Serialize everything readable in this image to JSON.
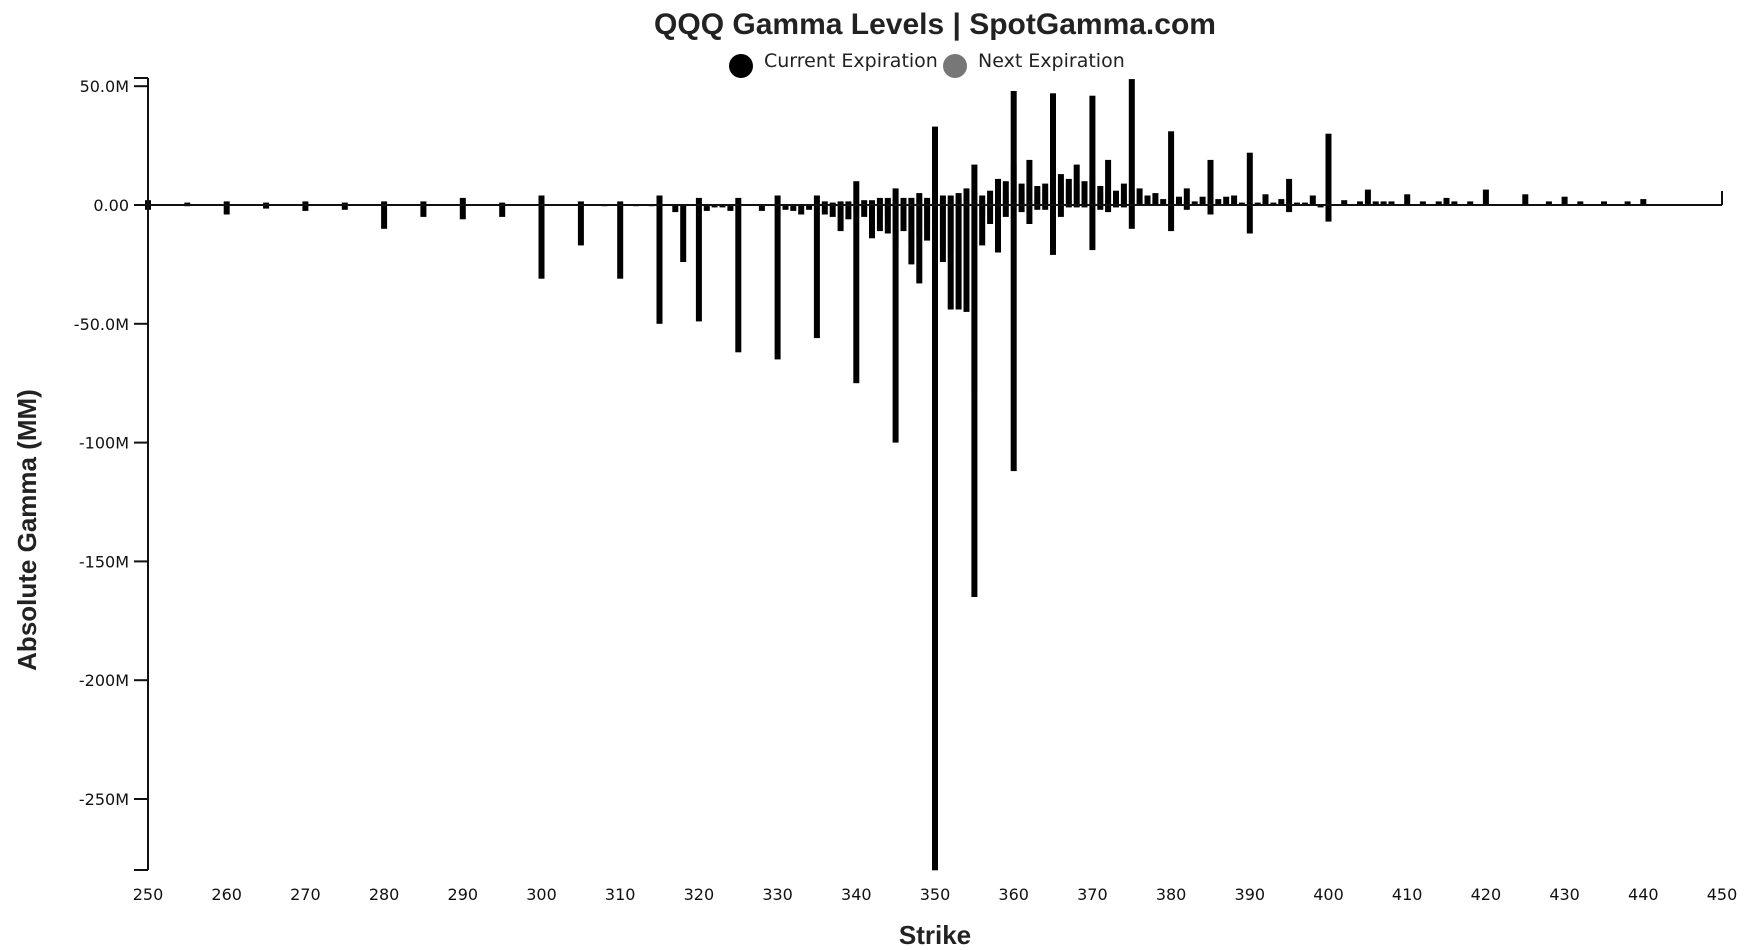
{
  "chart_data": {
    "type": "bar",
    "title": "QQQ Gamma Levels | SpotGamma.com",
    "xlabel": "Strike",
    "ylabel": "Absolute Gamma (MM)",
    "xlim": [
      250,
      450
    ],
    "ylim": [
      -280,
      52
    ],
    "x_ticks": [
      "250",
      "260",
      "270",
      "280",
      "290",
      "300",
      "310",
      "320",
      "330",
      "340",
      "350",
      "360",
      "370",
      "380",
      "390",
      "400",
      "410",
      "420",
      "430",
      "440",
      "450"
    ],
    "y_ticks": [
      {
        "value": 50,
        "label": "50.0M"
      },
      {
        "value": 0,
        "label": "0.00"
      },
      {
        "value": -50,
        "label": "-50.0M"
      },
      {
        "value": -100,
        "label": "-100M"
      },
      {
        "value": -150,
        "label": "-150M"
      },
      {
        "value": -200,
        "label": "-200M"
      },
      {
        "value": -250,
        "label": "-250M"
      }
    ],
    "legend": {
      "placement": "top-center"
    },
    "series": [
      {
        "name": "Current Expiration",
        "color": "#000000",
        "points": [
          [
            250,
            -2
          ],
          [
            255,
            -0.5
          ],
          [
            260,
            -4
          ],
          [
            265,
            -1.5
          ],
          [
            270,
            -2.5
          ],
          [
            275,
            -2
          ],
          [
            280,
            -10
          ],
          [
            285,
            -5
          ],
          [
            290,
            -6
          ],
          [
            295,
            -5
          ],
          [
            300,
            -31
          ],
          [
            305,
            -17
          ],
          [
            308,
            -0.5
          ],
          [
            310,
            -31
          ],
          [
            312,
            -0.5
          ],
          [
            314,
            -0.5
          ],
          [
            315,
            -50
          ],
          [
            317,
            -3
          ],
          [
            318,
            -24
          ],
          [
            320,
            -49
          ],
          [
            321,
            -2.5
          ],
          [
            322,
            -1
          ],
          [
            323,
            -1
          ],
          [
            324,
            -2.5
          ],
          [
            325,
            -62
          ],
          [
            328,
            -2.5
          ],
          [
            330,
            -65
          ],
          [
            331,
            -2
          ],
          [
            332,
            -2.5
          ],
          [
            333,
            -4
          ],
          [
            334,
            -2
          ],
          [
            335,
            -56
          ],
          [
            336,
            -4
          ],
          [
            337,
            -5
          ],
          [
            338,
            -11
          ],
          [
            339,
            -6
          ],
          [
            340,
            -75
          ],
          [
            341,
            -5
          ],
          [
            342,
            -14
          ],
          [
            343,
            -11
          ],
          [
            344,
            -12
          ],
          [
            345,
            -100
          ],
          [
            346,
            -11
          ],
          [
            347,
            -25
          ],
          [
            348,
            -33
          ],
          [
            349,
            -15
          ],
          [
            350,
            -280
          ],
          [
            351,
            -24
          ],
          [
            352,
            -44
          ],
          [
            353,
            -44
          ],
          [
            354,
            -45
          ],
          [
            355,
            -165
          ],
          [
            356,
            -17
          ],
          [
            357,
            -8
          ],
          [
            358,
            -20
          ],
          [
            359,
            -5
          ],
          [
            360,
            -112
          ],
          [
            361,
            -3
          ],
          [
            362,
            -8
          ],
          [
            363,
            -2
          ],
          [
            364,
            -2
          ],
          [
            365,
            -21
          ],
          [
            366,
            -5
          ],
          [
            367,
            -1
          ],
          [
            368,
            -1
          ],
          [
            369,
            -1
          ],
          [
            370,
            -19
          ],
          [
            371,
            -2
          ],
          [
            372,
            -3
          ],
          [
            373,
            -1
          ],
          [
            374,
            -1
          ],
          [
            375,
            -10
          ],
          [
            376,
            0
          ],
          [
            377,
            0
          ],
          [
            380,
            -11
          ],
          [
            382,
            -2
          ],
          [
            385,
            -4
          ],
          [
            390,
            -12
          ],
          [
            395,
            -3
          ],
          [
            399,
            -1
          ],
          [
            400,
            -7
          ],
          [
            250,
            2
          ],
          [
            255,
            1
          ],
          [
            260,
            1.5
          ],
          [
            265,
            1
          ],
          [
            270,
            1.5
          ],
          [
            275,
            1
          ],
          [
            280,
            1.5
          ],
          [
            285,
            1.5
          ],
          [
            290,
            3
          ],
          [
            295,
            1
          ],
          [
            300,
            4
          ],
          [
            305,
            1.5
          ],
          [
            310,
            1.5
          ],
          [
            315,
            4
          ],
          [
            320,
            3
          ],
          [
            325,
            3
          ],
          [
            330,
            4
          ],
          [
            335,
            4
          ],
          [
            336,
            1.5
          ],
          [
            337,
            1
          ],
          [
            338,
            1.5
          ],
          [
            339,
            1.5
          ],
          [
            340,
            10
          ],
          [
            341,
            2
          ],
          [
            342,
            2
          ],
          [
            343,
            3
          ],
          [
            344,
            3
          ],
          [
            345,
            7
          ],
          [
            346,
            3
          ],
          [
            347,
            3
          ],
          [
            348,
            5
          ],
          [
            349,
            3
          ],
          [
            350,
            33
          ],
          [
            351,
            4
          ],
          [
            352,
            4
          ],
          [
            353,
            5
          ],
          [
            354,
            7
          ],
          [
            355,
            17
          ],
          [
            356,
            4
          ],
          [
            357,
            6
          ],
          [
            358,
            11
          ],
          [
            359,
            10
          ],
          [
            360,
            48
          ],
          [
            361,
            9
          ],
          [
            362,
            19
          ],
          [
            363,
            8
          ],
          [
            364,
            9
          ],
          [
            365,
            47
          ],
          [
            366,
            13
          ],
          [
            367,
            11
          ],
          [
            368,
            17
          ],
          [
            369,
            10
          ],
          [
            370,
            46
          ],
          [
            371,
            8
          ],
          [
            372,
            19
          ],
          [
            373,
            6
          ],
          [
            374,
            9
          ],
          [
            375,
            53
          ],
          [
            376,
            7
          ],
          [
            377,
            4
          ],
          [
            378,
            5
          ],
          [
            379,
            2.5
          ],
          [
            380,
            31
          ],
          [
            381,
            3.5
          ],
          [
            382,
            7
          ],
          [
            383,
            1.5
          ],
          [
            384,
            3.5
          ],
          [
            385,
            19
          ],
          [
            386,
            2.5
          ],
          [
            387,
            3.5
          ],
          [
            388,
            4
          ],
          [
            389,
            1
          ],
          [
            390,
            22
          ],
          [
            391,
            1
          ],
          [
            392,
            4.5
          ],
          [
            393,
            1
          ],
          [
            394,
            2.5
          ],
          [
            395,
            11
          ],
          [
            396,
            1
          ],
          [
            397,
            1
          ],
          [
            398,
            4
          ],
          [
            400,
            30
          ],
          [
            402,
            2
          ],
          [
            404,
            1.5
          ],
          [
            405,
            6.5
          ],
          [
            406,
            1.5
          ],
          [
            407,
            1.5
          ],
          [
            408,
            1.5
          ],
          [
            410,
            4.5
          ],
          [
            412,
            1.5
          ],
          [
            414,
            1.5
          ],
          [
            415,
            3
          ],
          [
            416,
            1.5
          ],
          [
            418,
            1.5
          ],
          [
            420,
            6.5
          ],
          [
            425,
            4.5
          ],
          [
            428,
            1.5
          ],
          [
            430,
            3.5
          ],
          [
            432,
            1.5
          ],
          [
            435,
            1.5
          ],
          [
            438,
            1.5
          ],
          [
            440,
            2.5
          ]
        ]
      },
      {
        "name": "Next Expiration",
        "color": "#a6a6a6",
        "points": [
          [
            340,
            -3
          ],
          [
            341,
            -2
          ],
          [
            342,
            -3
          ],
          [
            343,
            -5
          ],
          [
            344,
            -6
          ],
          [
            345,
            -18
          ],
          [
            346,
            -7
          ],
          [
            347,
            -17
          ],
          [
            348,
            -13
          ],
          [
            349,
            -9
          ],
          [
            350,
            -69
          ],
          [
            351,
            -18
          ],
          [
            352,
            -19
          ],
          [
            353,
            -32
          ],
          [
            354,
            -29
          ],
          [
            355,
            -79
          ],
          [
            356,
            -5
          ],
          [
            357,
            -2
          ],
          [
            360,
            -2
          ],
          [
            365,
            -3
          ],
          [
            343,
            2
          ],
          [
            344,
            2
          ],
          [
            345,
            3
          ],
          [
            346,
            2
          ],
          [
            347,
            3
          ],
          [
            348,
            3
          ],
          [
            349,
            2
          ],
          [
            350,
            3
          ],
          [
            351,
            2
          ],
          [
            352,
            2
          ],
          [
            353,
            3
          ],
          [
            354,
            3
          ],
          [
            355,
            6
          ],
          [
            356,
            2
          ],
          [
            357,
            3
          ],
          [
            358,
            4
          ],
          [
            359,
            5
          ],
          [
            360,
            17
          ],
          [
            361,
            5
          ],
          [
            362,
            8
          ],
          [
            363,
            5
          ],
          [
            364,
            6
          ],
          [
            365,
            27
          ],
          [
            366,
            9
          ],
          [
            367,
            7
          ],
          [
            368,
            9
          ],
          [
            369,
            6
          ],
          [
            370,
            12
          ],
          [
            371,
            5
          ],
          [
            372,
            6
          ],
          [
            373,
            3
          ],
          [
            374,
            4
          ],
          [
            375,
            6
          ],
          [
            376,
            2
          ],
          [
            377,
            2
          ],
          [
            378,
            2
          ],
          [
            380,
            3
          ]
        ]
      }
    ]
  }
}
